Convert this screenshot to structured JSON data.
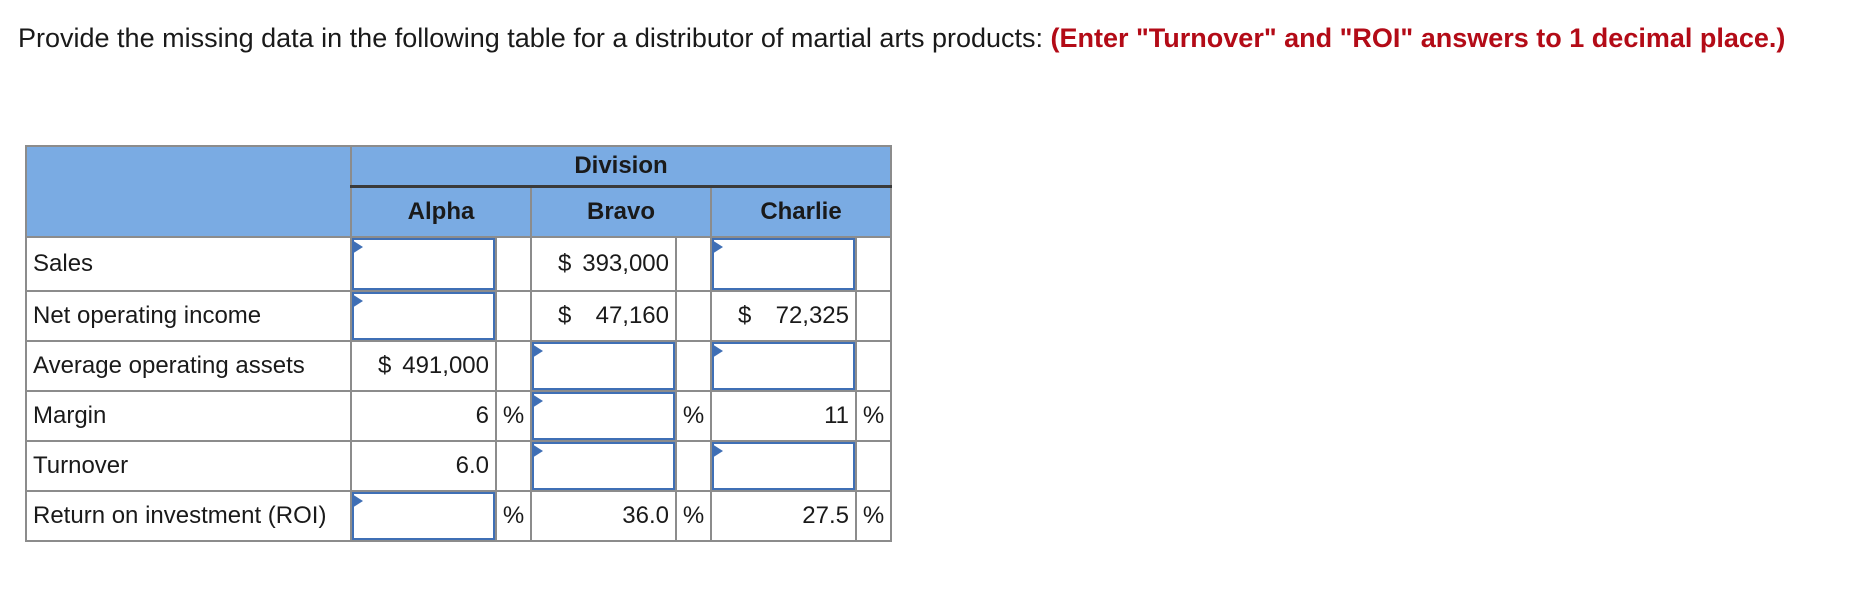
{
  "prompt": {
    "text": "Provide the missing data in the following table for a distributor of martial arts products: ",
    "highlight": "(Enter \"Turnover\" and \"ROI\" answers to 1 decimal place.)"
  },
  "table": {
    "group_header": "Division",
    "columns": [
      "Alpha",
      "Bravo",
      "Charlie"
    ],
    "currency_symbol": "$",
    "percent_symbol": "%",
    "rows": {
      "sales": {
        "label": "Sales",
        "bravo": "393,000"
      },
      "noi": {
        "label": "Net operating income",
        "bravo": "47,160",
        "charlie": "72,325"
      },
      "assets": {
        "label": "Average operating assets",
        "alpha": "491,000"
      },
      "margin": {
        "label": "Margin",
        "alpha": "6",
        "charlie": "11"
      },
      "turnover": {
        "label": "Turnover",
        "alpha": "6.0"
      },
      "roi": {
        "label": "Return on investment (ROI)",
        "bravo": "36.0",
        "charlie": "27.5"
      }
    }
  }
}
